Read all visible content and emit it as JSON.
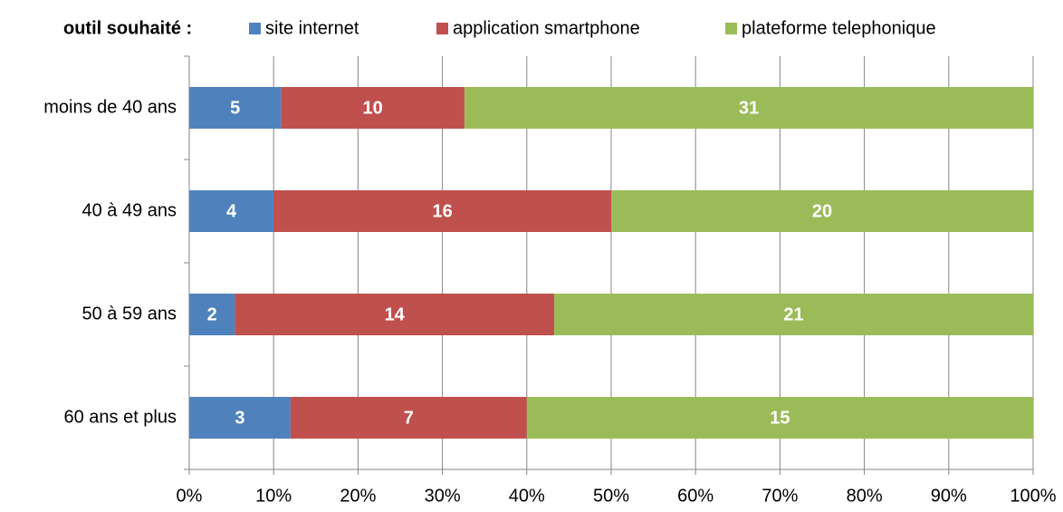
{
  "chart_data": {
    "type": "bar",
    "orientation": "horizontal",
    "stacking": "percent",
    "legend_title": "outil souhaité :",
    "categories": [
      "moins de 40 ans",
      "40 à 49 ans",
      "50 à 59 ans",
      "60 ans et plus"
    ],
    "series": [
      {
        "name": "site internet",
        "color": "#4f81bd",
        "values": [
          5,
          4,
          2,
          3
        ]
      },
      {
        "name": "application smartphone",
        "color": "#c0504d",
        "values": [
          10,
          16,
          14,
          7
        ]
      },
      {
        "name": "plateforme telephonique",
        "color": "#9bbb59",
        "values": [
          31,
          20,
          21,
          15
        ]
      }
    ],
    "xlim": [
      0,
      100
    ],
    "xticks": [
      {
        "value": 0,
        "label": "0%"
      },
      {
        "value": 10,
        "label": "10%"
      },
      {
        "value": 20,
        "label": "20%"
      },
      {
        "value": 30,
        "label": "30%"
      },
      {
        "value": 40,
        "label": "40%"
      },
      {
        "value": 50,
        "label": "50%"
      },
      {
        "value": 60,
        "label": "60%"
      },
      {
        "value": 70,
        "label": "70%"
      },
      {
        "value": 80,
        "label": "80%"
      },
      {
        "value": 90,
        "label": "90%"
      },
      {
        "value": 100,
        "label": "100%"
      }
    ],
    "grid": true,
    "legend": "top"
  }
}
